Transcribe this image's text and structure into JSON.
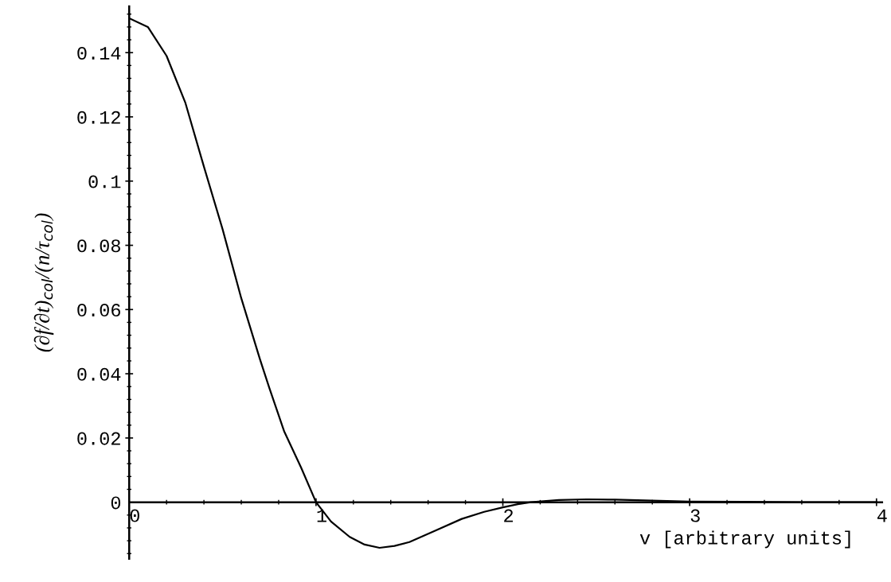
{
  "chart_data": {
    "type": "line",
    "xlabel": "v [arbitrary units]",
    "ylabel": "(∂f/∂t)$_{col}$/(n/τ$_{col}$)",
    "series": [
      {
        "color": "#000000",
        "x": [
          0,
          0.1,
          0.2,
          0.3,
          0.4,
          0.5,
          0.6,
          0.7,
          0.75,
          0.83,
          0.92,
          1.0,
          1.08,
          1.18,
          1.26,
          1.34,
          1.42,
          1.5,
          1.64,
          1.78,
          1.9,
          2.0,
          2.08,
          2.15,
          2.3,
          2.45,
          2.6,
          2.8,
          3.0,
          3.3,
          3.6,
          4.0
        ],
        "values": [
          0.1507,
          0.148,
          0.139,
          0.1245,
          0.1045,
          0.085,
          0.0635,
          0.0445,
          0.0356,
          0.022,
          0.0108,
          0,
          -0.006,
          -0.0108,
          -0.0132,
          -0.0142,
          -0.0136,
          -0.0124,
          -0.0088,
          -0.0052,
          -0.003,
          -0.0016,
          -0.0006,
          0,
          0.0007,
          0.0009,
          0.0008,
          0.0005,
          0.0002,
          0.0001,
          0,
          0
        ]
      }
    ],
    "xlim": [
      0,
      4.03
    ],
    "ylim": [
      -0.0176,
      0.1544
    ],
    "xticks": [
      0,
      1,
      2,
      3,
      4
    ],
    "yticks": [
      0,
      0.02,
      0.04,
      0.06,
      0.08,
      0.1,
      0.12,
      0.14
    ],
    "grid": false,
    "legend": false,
    "marker": "none",
    "line_style": "solid"
  }
}
